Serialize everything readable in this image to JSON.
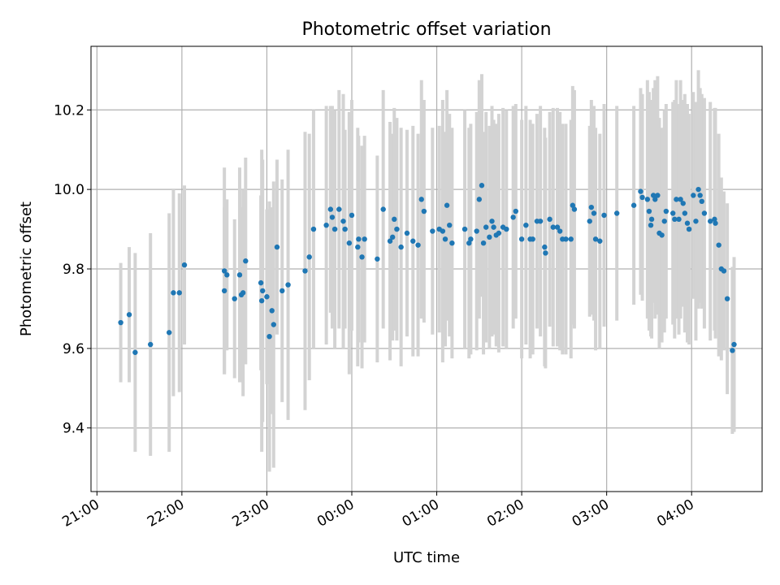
{
  "chart_data": {
    "type": "scatter",
    "title": "Photometric offset variation",
    "xlabel": "UTC time",
    "ylabel": "Photometric offset",
    "x_unit": "hours since 21:00 UTC",
    "xlim": [
      -0.07,
      7.83
    ],
    "ylim": [
      9.24,
      10.36
    ],
    "x_ticks": [
      {
        "v": 0,
        "label": "21:00"
      },
      {
        "v": 1,
        "label": "22:00"
      },
      {
        "v": 2,
        "label": "23:00"
      },
      {
        "v": 3,
        "label": "00:00"
      },
      {
        "v": 4,
        "label": "01:00"
      },
      {
        "v": 5,
        "label": "02:00"
      },
      {
        "v": 6,
        "label": "03:00"
      },
      {
        "v": 7,
        "label": "04:00"
      }
    ],
    "y_ticks": [
      {
        "v": 9.4,
        "label": "9.4"
      },
      {
        "v": 9.6,
        "label": "9.6"
      },
      {
        "v": 9.8,
        "label": "9.8"
      },
      {
        "v": 10.0,
        "label": "10.0"
      },
      {
        "v": 10.2,
        "label": "10.2"
      }
    ],
    "grid": true,
    "colors": {
      "point": "#1f77b4",
      "errorbar": "#d3d3d3",
      "grid": "#b0b0b0"
    },
    "series": [
      {
        "points": [
          [
            0.28,
            9.665,
            0.15
          ],
          [
            0.38,
            9.685,
            0.17
          ],
          [
            0.45,
            9.59,
            0.25
          ],
          [
            0.63,
            9.61,
            0.28
          ],
          [
            0.85,
            9.64,
            0.3
          ],
          [
            0.9,
            9.74,
            0.26
          ],
          [
            0.97,
            9.74,
            0.25
          ],
          [
            1.03,
            9.81,
            0.2
          ],
          [
            1.5,
            9.795,
            0.26
          ],
          [
            1.5,
            9.745,
            0.21
          ],
          [
            1.53,
            9.785,
            0.19
          ],
          [
            1.62,
            9.725,
            0.2
          ],
          [
            1.68,
            9.785,
            0.27
          ],
          [
            1.7,
            9.735,
            0.22
          ],
          [
            1.72,
            9.74,
            0.26
          ],
          [
            1.75,
            9.82,
            0.26
          ],
          [
            1.93,
            9.765,
            0.22
          ],
          [
            1.94,
            9.72,
            0.38
          ],
          [
            1.95,
            9.745,
            0.33
          ],
          [
            2.0,
            9.73,
            0.22
          ],
          [
            2.03,
            9.63,
            0.34
          ],
          [
            2.06,
            9.695,
            0.26
          ],
          [
            2.08,
            9.66,
            0.36
          ],
          [
            2.12,
            9.855,
            0.22
          ],
          [
            2.18,
            9.745,
            0.28
          ],
          [
            2.25,
            9.76,
            0.34
          ],
          [
            2.45,
            9.795,
            0.35
          ],
          [
            2.5,
            9.83,
            0.31
          ],
          [
            2.55,
            9.9,
            0.3
          ],
          [
            2.7,
            9.91,
            0.3
          ],
          [
            2.75,
            9.95,
            0.26
          ],
          [
            2.77,
            9.93,
            0.28
          ],
          [
            2.8,
            9.9,
            0.3
          ],
          [
            2.85,
            9.95,
            0.3
          ],
          [
            2.9,
            9.92,
            0.32
          ],
          [
            2.92,
            9.9,
            0.25
          ],
          [
            2.97,
            9.865,
            0.33
          ],
          [
            3.0,
            9.935,
            0.29
          ],
          [
            3.07,
            9.855,
            0.3
          ],
          [
            3.08,
            9.875,
            0.26
          ],
          [
            3.12,
            9.83,
            0.28
          ],
          [
            3.15,
            9.875,
            0.26
          ],
          [
            3.3,
            9.825,
            0.26
          ],
          [
            3.37,
            9.95,
            0.3
          ],
          [
            3.45,
            9.87,
            0.3
          ],
          [
            3.48,
            9.88,
            0.26
          ],
          [
            3.5,
            9.925,
            0.28
          ],
          [
            3.53,
            9.9,
            0.28
          ],
          [
            3.58,
            9.855,
            0.3
          ],
          [
            3.65,
            9.89,
            0.26
          ],
          [
            3.72,
            9.87,
            0.29
          ],
          [
            3.78,
            9.86,
            0.28
          ],
          [
            3.82,
            9.975,
            0.3
          ],
          [
            3.85,
            9.945,
            0.28
          ],
          [
            3.95,
            9.895,
            0.26
          ],
          [
            4.03,
            9.9,
            0.26
          ],
          [
            4.07,
            9.895,
            0.33
          ],
          [
            4.1,
            9.875,
            0.27
          ],
          [
            4.12,
            9.96,
            0.29
          ],
          [
            4.15,
            9.91,
            0.28
          ],
          [
            4.18,
            9.865,
            0.29
          ],
          [
            4.33,
            9.9,
            0.3
          ],
          [
            4.38,
            9.865,
            0.29
          ],
          [
            4.4,
            9.875,
            0.29
          ],
          [
            4.47,
            9.895,
            0.3
          ],
          [
            4.5,
            9.975,
            0.3
          ],
          [
            4.53,
            10.01,
            0.28
          ],
          [
            4.55,
            9.865,
            0.28
          ],
          [
            4.58,
            9.905,
            0.29
          ],
          [
            4.62,
            9.88,
            0.28
          ],
          [
            4.65,
            9.92,
            0.29
          ],
          [
            4.67,
            9.905,
            0.27
          ],
          [
            4.7,
            9.885,
            0.28
          ],
          [
            4.73,
            9.89,
            0.3
          ],
          [
            4.78,
            9.905,
            0.3
          ],
          [
            4.82,
            9.9,
            0.3
          ],
          [
            4.9,
            9.93,
            0.28
          ],
          [
            4.93,
            9.945,
            0.27
          ],
          [
            5.0,
            9.875,
            0.3
          ],
          [
            5.05,
            9.91,
            0.3
          ],
          [
            5.1,
            9.875,
            0.3
          ],
          [
            5.13,
            9.875,
            0.29
          ],
          [
            5.18,
            9.92,
            0.27
          ],
          [
            5.22,
            9.92,
            0.29
          ],
          [
            5.27,
            9.855,
            0.3
          ],
          [
            5.28,
            9.84,
            0.29
          ],
          [
            5.33,
            9.925,
            0.27
          ],
          [
            5.37,
            9.905,
            0.3
          ],
          [
            5.42,
            9.905,
            0.3
          ],
          [
            5.45,
            9.895,
            0.3
          ],
          [
            5.48,
            9.875,
            0.29
          ],
          [
            5.52,
            9.875,
            0.29
          ],
          [
            5.58,
            9.875,
            0.3
          ],
          [
            5.6,
            9.96,
            0.3
          ],
          [
            5.62,
            9.95,
            0.3
          ],
          [
            5.8,
            9.92,
            0.24
          ],
          [
            5.82,
            9.955,
            0.27
          ],
          [
            5.85,
            9.94,
            0.27
          ],
          [
            5.87,
            9.875,
            0.28
          ],
          [
            5.92,
            9.87,
            0.27
          ],
          [
            5.97,
            9.935,
            0.28
          ],
          [
            6.12,
            9.94,
            0.27
          ],
          [
            6.32,
            9.96,
            0.25
          ],
          [
            6.4,
            9.995,
            0.26
          ],
          [
            6.42,
            9.98,
            0.26
          ],
          [
            6.48,
            9.975,
            0.3
          ],
          [
            6.5,
            9.945,
            0.3
          ],
          [
            6.52,
            9.91,
            0.28
          ],
          [
            6.53,
            9.925,
            0.3
          ],
          [
            6.55,
            9.985,
            0.27
          ],
          [
            6.57,
            9.975,
            0.3
          ],
          [
            6.6,
            9.985,
            0.3
          ],
          [
            6.62,
            9.89,
            0.29
          ],
          [
            6.65,
            9.885,
            0.27
          ],
          [
            6.68,
            9.92,
            0.28
          ],
          [
            6.7,
            9.945,
            0.27
          ],
          [
            6.78,
            9.94,
            0.28
          ],
          [
            6.8,
            9.925,
            0.3
          ],
          [
            6.82,
            9.975,
            0.3
          ],
          [
            6.85,
            9.925,
            0.29
          ],
          [
            6.87,
            9.975,
            0.3
          ],
          [
            6.9,
            9.965,
            0.26
          ],
          [
            6.92,
            9.94,
            0.3
          ],
          [
            6.95,
            9.915,
            0.3
          ],
          [
            6.97,
            9.9,
            0.29
          ],
          [
            7.02,
            9.985,
            0.26
          ],
          [
            7.05,
            9.92,
            0.3
          ],
          [
            7.08,
            10.0,
            0.3
          ],
          [
            7.1,
            9.985,
            0.27
          ],
          [
            7.12,
            9.97,
            0.27
          ],
          [
            7.15,
            9.94,
            0.29
          ],
          [
            7.22,
            9.92,
            0.3
          ],
          [
            7.27,
            9.925,
            0.28
          ],
          [
            7.28,
            9.915,
            0.29
          ],
          [
            7.32,
            9.86,
            0.28
          ],
          [
            7.35,
            9.8,
            0.23
          ],
          [
            7.38,
            9.795,
            0.2
          ],
          [
            7.42,
            9.725,
            0.24
          ],
          [
            7.48,
            9.595,
            0.21
          ],
          [
            7.5,
            9.61,
            0.22
          ]
        ]
      }
    ]
  }
}
